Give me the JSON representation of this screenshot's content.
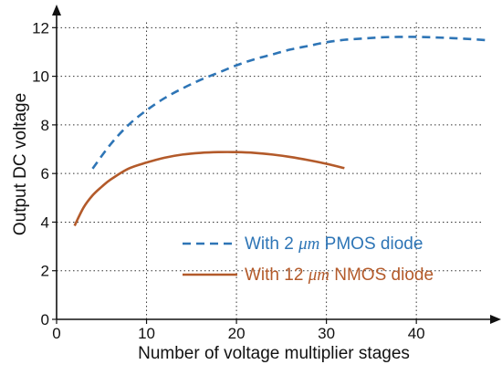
{
  "chart_data": {
    "type": "line",
    "xlabel": "Number of voltage multiplier stages",
    "ylabel": "Output DC voltage",
    "xlim": [
      0,
      48
    ],
    "ylim": [
      0,
      12.5
    ],
    "x_ticks": [
      0,
      10,
      20,
      30,
      40
    ],
    "y_ticks": [
      0,
      2,
      4,
      6,
      8,
      10,
      12
    ],
    "x_tick_labels": [
      "0",
      "10",
      "20",
      "30",
      "40"
    ],
    "y_tick_labels": [
      "0",
      "2",
      "4",
      "6",
      "8",
      "10",
      "12"
    ],
    "grid": true,
    "legend_position": "bottom-right",
    "series": [
      {
        "name_prefix": "With 2 ",
        "name_unit": "μm",
        "name_suffix": " PMOS diode",
        "color": "#2e75b6",
        "style": "dashed",
        "x": [
          4,
          6,
          8,
          10,
          12,
          14,
          16,
          18,
          20,
          22,
          24,
          26,
          28,
          30,
          32,
          34,
          36,
          38,
          40,
          42,
          44,
          46,
          48
        ],
        "y": [
          6.2,
          7.2,
          8.0,
          8.6,
          9.1,
          9.5,
          9.85,
          10.15,
          10.45,
          10.7,
          10.9,
          11.1,
          11.25,
          11.4,
          11.5,
          11.55,
          11.6,
          11.62,
          11.62,
          11.6,
          11.57,
          11.53,
          11.48
        ]
      },
      {
        "name_prefix": "With 12 ",
        "name_unit": "μm",
        "name_suffix": " NMOS diode",
        "color": "#b35a2a",
        "style": "solid",
        "x": [
          2,
          3,
          4,
          5,
          6,
          8,
          10,
          12,
          14,
          16,
          18,
          20,
          22,
          24,
          26,
          28,
          30,
          32
        ],
        "y": [
          3.85,
          4.6,
          5.1,
          5.45,
          5.75,
          6.2,
          6.45,
          6.65,
          6.78,
          6.85,
          6.88,
          6.88,
          6.85,
          6.78,
          6.68,
          6.55,
          6.4,
          6.22
        ]
      }
    ]
  }
}
